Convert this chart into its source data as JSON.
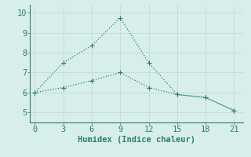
{
  "line1_x": [
    0,
    3,
    6,
    9,
    12,
    15,
    18,
    21
  ],
  "line1_y": [
    6.0,
    7.5,
    8.35,
    9.75,
    7.5,
    5.9,
    5.75,
    5.1
  ],
  "line2_x": [
    0,
    3,
    6,
    9,
    12,
    15,
    18,
    21
  ],
  "line2_y": [
    6.0,
    6.25,
    6.6,
    7.0,
    6.25,
    5.9,
    5.75,
    5.1
  ],
  "line_color": "#2e7d6e",
  "bg_color": "#d8eeeb",
  "grid_color": "#c0ddd9",
  "spine_color": "#2e7d6e",
  "xlabel": "Humidex (Indice chaleur)",
  "xlabel_fontsize": 7.5,
  "xlim": [
    -0.5,
    22
  ],
  "ylim": [
    4.5,
    10.4
  ],
  "xticks": [
    0,
    3,
    6,
    9,
    12,
    15,
    18,
    21
  ],
  "yticks": [
    5,
    6,
    7,
    8,
    9,
    10
  ],
  "tick_fontsize": 7.5,
  "marker_size": 2.5,
  "linewidth": 0.9
}
